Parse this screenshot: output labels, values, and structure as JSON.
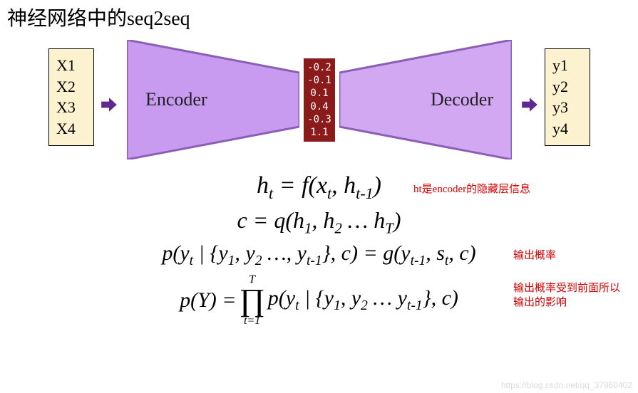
{
  "title": "神经网络中的seq2seq",
  "inputs": [
    "X1",
    "X2",
    "X3",
    "X4"
  ],
  "outputs": [
    "y1",
    "y2",
    "y3",
    "y4"
  ],
  "encoder_label": "Encoder",
  "decoder_label": "Decoder",
  "context_vector": [
    "-0.2",
    "-0.1",
    "0.1",
    "0.4",
    "-0.3",
    "1.1"
  ],
  "colors": {
    "io_box_bg": "#fdf2cf",
    "io_box_border": "#000000",
    "encoder_fill": "#c89af0",
    "decoder_fill": "#d3a8f2",
    "trap_stroke": "#8a5fb5",
    "context_bg": "#8b1a1a",
    "context_text": "#ffffff",
    "arrow_fill": "#5e2a91",
    "note_color": "#d40000",
    "watermark_color": "#dcdcdc"
  },
  "formulas": {
    "f1": "hₜ = f(xₜ, hₜ₋₁)",
    "f2": "c = q(h₁, h₂ … h_T)",
    "f3": "p(yₜ | {y₁, y₂ …, yₜ₋₁}, c) = g(yₜ₋₁, sₜ, c)",
    "f4_left": "p(Y) = ",
    "f4_prod_top": "T",
    "f4_prod_bot": "t=1",
    "f4_right": " p(yₜ | {y₁, y₂ … yₜ₋₁}, c)"
  },
  "notes": {
    "n1": "ht是encoder的隐藏层信息",
    "n3": "输出概率",
    "n4": "输出概率受到前面所以\n输出的影响"
  },
  "watermark": "https://blog.csdn.net/qq_37960402"
}
